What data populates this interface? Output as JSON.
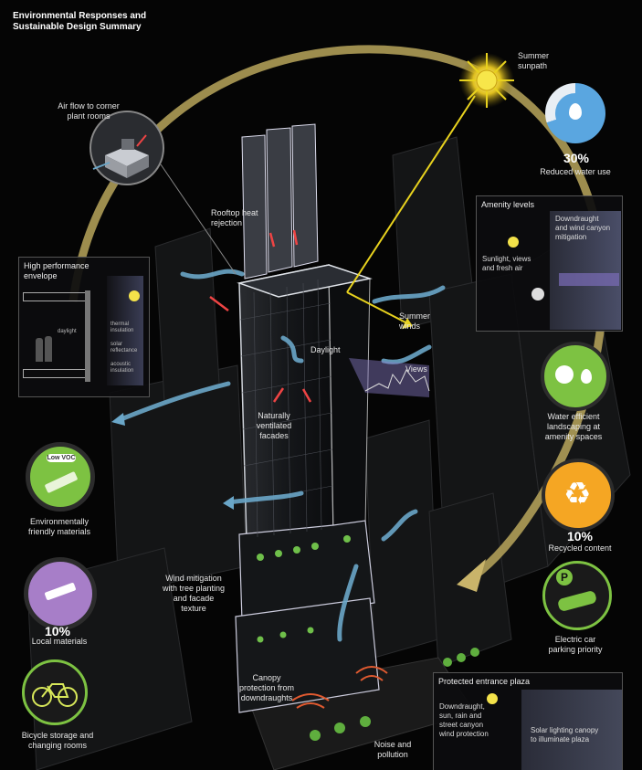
{
  "title": "Environmental Responses and\nSustainable Design Summary",
  "labels": {
    "summer_sunpath": "Summer\nsunpath",
    "air_flow": "Air flow to corner\nplant rooms",
    "rooftop_heat": "Rooftop heat\nrejection",
    "summer_winds": "Summer\nwinds",
    "daylight": "Daylight",
    "views": "Views",
    "naturally_ventilated": "Naturally\nventilated\nfacades",
    "wind_mitigation": "Wind mitigation\nwith tree planting\nand facade\ntexture",
    "canopy": "Canopy\nprotection from\ndowndraughts",
    "noise": "Noise and\npollution"
  },
  "left_icons": {
    "materials": {
      "badge": "Low VOC",
      "label": "Environmentally\nfriendly materials"
    },
    "local": {
      "value": "10%",
      "label": "Local materials"
    },
    "bicycle": {
      "label": "Bicycle storage and\nchanging rooms"
    }
  },
  "right_icons": {
    "water": {
      "value": "30%",
      "label": "Reduced water use"
    },
    "landscaping": {
      "label": "Water efficient\nlandscaping at\namenity spaces"
    },
    "recycled": {
      "value": "10%",
      "label": "Recycled content"
    },
    "electric_car": {
      "badge": "P",
      "label": "Electric car\nparking priority"
    }
  },
  "panels": {
    "envelope": {
      "title": "High performance\nenvelope",
      "daylight": "daylight",
      "thermal": "thermal\ninsulation",
      "solar": "solar\nreflectance",
      "acoustic": "acoustic\ninsulation"
    },
    "amenity": {
      "title": "Amenity levels",
      "downdraught": "Downdraught\nand wind canyon\nmitigation",
      "sunlight": "Sunlight, views\nand fresh air"
    },
    "entrance": {
      "title": "Protected entrance plaza",
      "downdraught": "Downdraught,\nsun, rain and\nstreet canyon\nwind protection",
      "solar_canopy": "Solar lighting canopy\nto illuminate plaza"
    }
  },
  "colors": {
    "sunpath": "#c9b46a",
    "water_blue": "#5aa6e0",
    "green": "#7dc242",
    "recycle_orange": "#f5a623",
    "local_purple": "#a77ec8",
    "wind": "#6aa6c8",
    "arrow_yellow": "#e8d21e"
  }
}
